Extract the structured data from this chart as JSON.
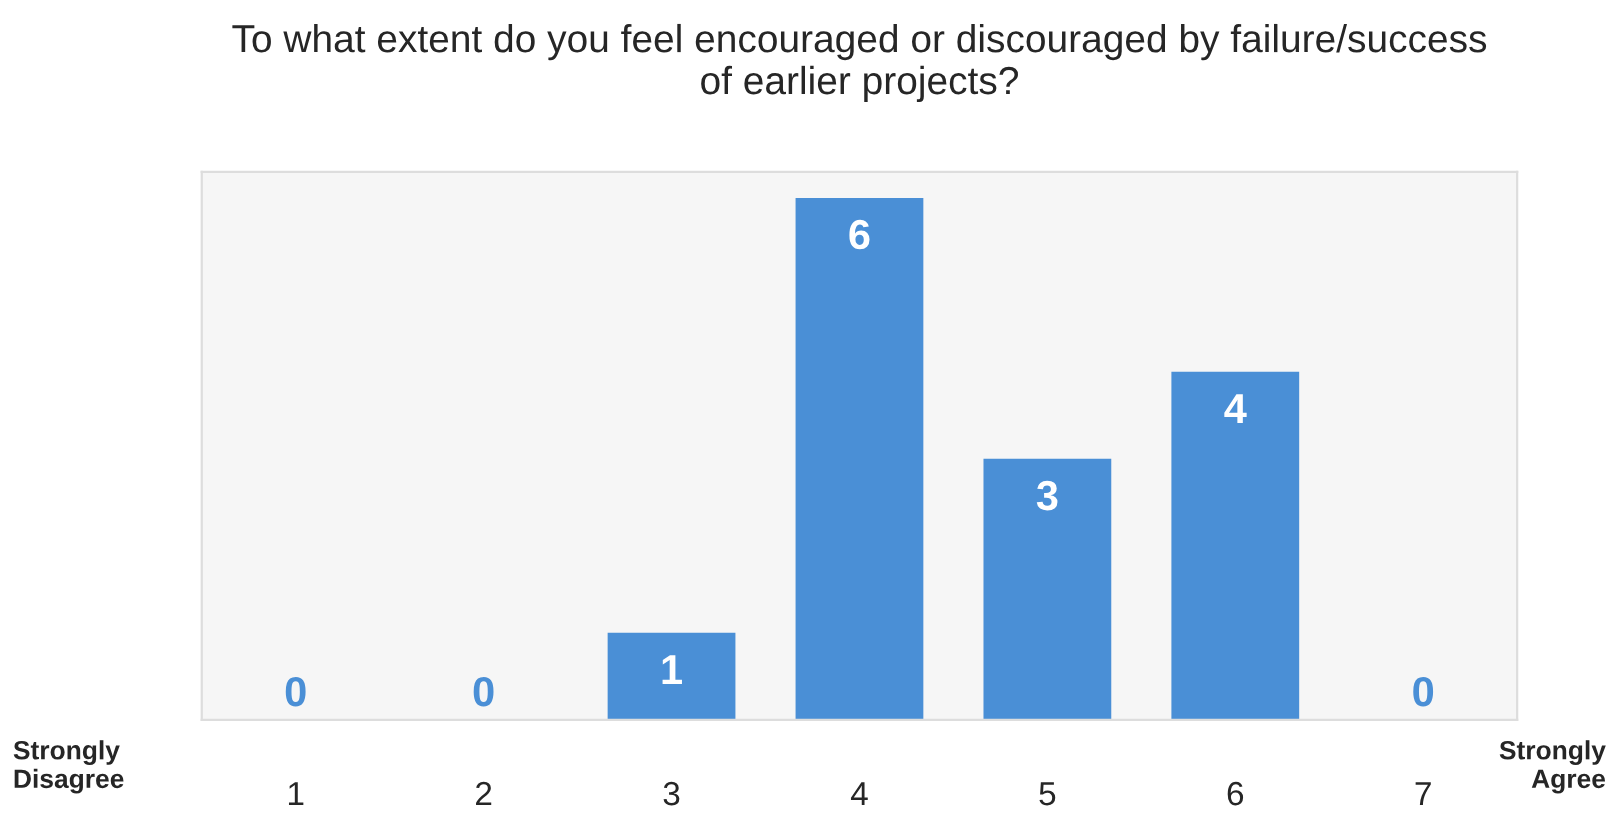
{
  "chart_data": {
    "type": "bar",
    "title": "To what extent do you feel encouraged or discouraged by failure/success\nof earlier projects?",
    "categories": [
      "1",
      "2",
      "3",
      "4",
      "5",
      "6",
      "7"
    ],
    "values": [
      0,
      0,
      1,
      6,
      3,
      4,
      0
    ],
    "color": "#4a8fd6",
    "data_labels": true,
    "grid": false,
    "annotations": [
      "Strongly\nDisagree",
      "Strongly\nAgree"
    ]
  }
}
